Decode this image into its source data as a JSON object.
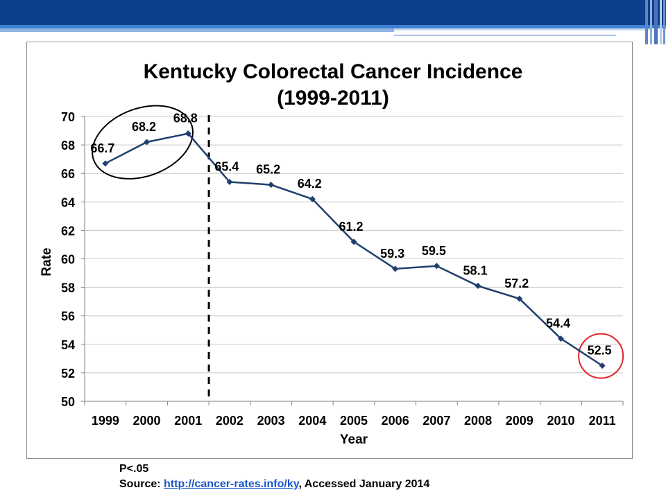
{
  "chart_data": {
    "type": "line",
    "title_line1": "Kentucky Colorectal Cancer Incidence",
    "title_line2": "(1999-2011)",
    "xlabel": "Year",
    "ylabel": "Rate",
    "ylim": [
      50,
      70
    ],
    "yticks": [
      "50",
      "52",
      "54",
      "56",
      "58",
      "60",
      "62",
      "64",
      "66",
      "68",
      "70"
    ],
    "categories": [
      "1999",
      "2000",
      "2001",
      "2002",
      "2003",
      "2004",
      "2005",
      "2006",
      "2007",
      "2008",
      "2009",
      "2010",
      "2011"
    ],
    "series": [
      {
        "values": [
          66.7,
          68.2,
          68.8,
          65.4,
          65.2,
          64.2,
          61.2,
          59.3,
          59.5,
          58.1,
          57.2,
          54.4,
          52.5
        ]
      }
    ],
    "data_labels": [
      "66.7",
      "68.2",
      "68.8",
      "65.4",
      "65.2",
      "64.2",
      "61.2",
      "59.3",
      "59.5",
      "58.1",
      "57.2",
      "54.4",
      "52.5"
    ],
    "grid": "horizontal",
    "legend": "none",
    "colors": {
      "line": "#1f3f6e",
      "marker": "#1f3f6e",
      "highlight_circle": "#e0262b",
      "ellipse": "#000000"
    },
    "annotations": {
      "dashed_divider_between": [
        "2001",
        "2002"
      ],
      "ellipse_around": [
        "1999",
        "2000",
        "2001"
      ],
      "red_circle_around": "2011"
    }
  },
  "footer": {
    "note": "P<.05",
    "source_prefix": "Source: ",
    "source_link": "http://cancer-rates.info/ky",
    "source_suffix": ",  Accessed January 2014"
  },
  "theme": {
    "banner_color": "#0e3f8a",
    "stripe_color": "#3d7fd0"
  }
}
